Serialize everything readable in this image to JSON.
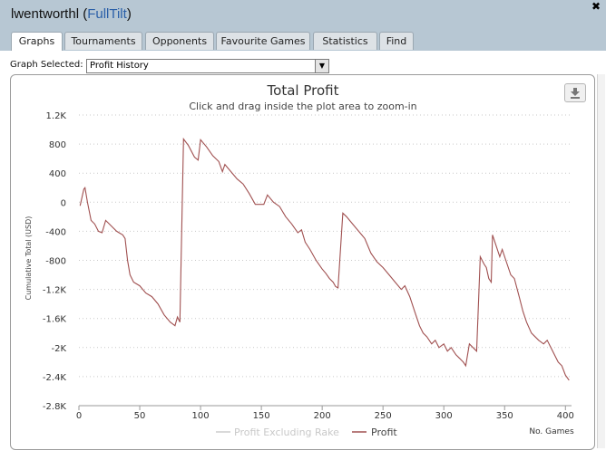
{
  "window": {
    "user": "lwentworthl",
    "site": "FullTilt"
  },
  "tabs": [
    {
      "label": "Graphs",
      "active": true
    },
    {
      "label": "Tournaments",
      "active": false
    },
    {
      "label": "Opponents",
      "active": false
    },
    {
      "label": "Favourite Games",
      "active": false
    },
    {
      "label": "Statistics",
      "active": false
    },
    {
      "label": "Find",
      "active": false
    }
  ],
  "graph_select": {
    "label": "Graph Selected:",
    "value": "Profit History"
  },
  "colors": {
    "header_bg": "#b7c7d3",
    "profit_line": "#a05050",
    "profit_excluding_rake_line": "#cccccc"
  },
  "chart_data": {
    "type": "line",
    "title": "Total Profit",
    "subtitle": "Click and drag inside the plot area to zoom-in",
    "xlabel": "No. Games",
    "ylabel": "Cumulative Total (USD)",
    "xlim": [
      0,
      405
    ],
    "ylim": [
      -2800,
      1200
    ],
    "xticks": [
      0,
      50,
      100,
      150,
      200,
      250,
      300,
      350,
      400
    ],
    "yticks": [
      -2800,
      -2400,
      -2000,
      -1600,
      -1200,
      -800,
      -400,
      0,
      400,
      800,
      1200
    ],
    "ytick_labels": [
      "-2.8K",
      "-2.4K",
      "-2K",
      "-1.6K",
      "-1.2K",
      "-800",
      "-400",
      "0",
      "400",
      "800",
      "1.2K"
    ],
    "grid": "horizontal dotted",
    "legend_position": "bottom-center",
    "series": [
      {
        "name": "Profit Excluding Rake",
        "values": []
      },
      {
        "name": "Profit",
        "values": [
          [
            1,
            -50
          ],
          [
            4,
            180
          ],
          [
            5,
            200
          ],
          [
            7,
            0
          ],
          [
            10,
            -250
          ],
          [
            13,
            -300
          ],
          [
            16,
            -400
          ],
          [
            19,
            -420
          ],
          [
            22,
            -250
          ],
          [
            25,
            -300
          ],
          [
            28,
            -350
          ],
          [
            31,
            -400
          ],
          [
            33,
            -420
          ],
          [
            36,
            -450
          ],
          [
            38,
            -500
          ],
          [
            40,
            -800
          ],
          [
            42,
            -1000
          ],
          [
            45,
            -1100
          ],
          [
            50,
            -1150
          ],
          [
            55,
            -1250
          ],
          [
            60,
            -1300
          ],
          [
            65,
            -1400
          ],
          [
            70,
            -1550
          ],
          [
            75,
            -1650
          ],
          [
            79,
            -1700
          ],
          [
            81,
            -1580
          ],
          [
            83,
            -1650
          ],
          [
            86,
            870
          ],
          [
            90,
            780
          ],
          [
            95,
            620
          ],
          [
            98,
            580
          ],
          [
            100,
            860
          ],
          [
            105,
            760
          ],
          [
            110,
            640
          ],
          [
            115,
            560
          ],
          [
            118,
            420
          ],
          [
            120,
            520
          ],
          [
            125,
            420
          ],
          [
            130,
            320
          ],
          [
            135,
            250
          ],
          [
            140,
            120
          ],
          [
            145,
            -30
          ],
          [
            152,
            -30
          ],
          [
            155,
            100
          ],
          [
            160,
            0
          ],
          [
            165,
            -60
          ],
          [
            170,
            -200
          ],
          [
            175,
            -300
          ],
          [
            180,
            -420
          ],
          [
            183,
            -380
          ],
          [
            186,
            -550
          ],
          [
            190,
            -650
          ],
          [
            195,
            -800
          ],
          [
            200,
            -920
          ],
          [
            203,
            -980
          ],
          [
            206,
            -1050
          ],
          [
            209,
            -1100
          ],
          [
            211,
            -1160
          ],
          [
            213,
            -1180
          ],
          [
            217,
            -150
          ],
          [
            220,
            -200
          ],
          [
            225,
            -300
          ],
          [
            230,
            -400
          ],
          [
            235,
            -500
          ],
          [
            240,
            -700
          ],
          [
            245,
            -820
          ],
          [
            250,
            -900
          ],
          [
            255,
            -1000
          ],
          [
            260,
            -1100
          ],
          [
            265,
            -1200
          ],
          [
            268,
            -1150
          ],
          [
            272,
            -1300
          ],
          [
            276,
            -1500
          ],
          [
            280,
            -1700
          ],
          [
            283,
            -1800
          ],
          [
            286,
            -1850
          ],
          [
            290,
            -1950
          ],
          [
            293,
            -1900
          ],
          [
            296,
            -2000
          ],
          [
            300,
            -1950
          ],
          [
            303,
            -2050
          ],
          [
            306,
            -2000
          ],
          [
            310,
            -2100
          ],
          [
            313,
            -2150
          ],
          [
            316,
            -2200
          ],
          [
            318,
            -2250
          ],
          [
            321,
            -1950
          ],
          [
            324,
            -2000
          ],
          [
            327,
            -2050
          ],
          [
            330,
            -750
          ],
          [
            333,
            -850
          ],
          [
            335,
            -900
          ],
          [
            337,
            -1050
          ],
          [
            339,
            -1100
          ],
          [
            340,
            -450
          ],
          [
            343,
            -600
          ],
          [
            346,
            -750
          ],
          [
            348,
            -650
          ],
          [
            351,
            -800
          ],
          [
            355,
            -1000
          ],
          [
            358,
            -1050
          ],
          [
            362,
            -1300
          ],
          [
            365,
            -1500
          ],
          [
            368,
            -1650
          ],
          [
            372,
            -1800
          ],
          [
            375,
            -1850
          ],
          [
            378,
            -1900
          ],
          [
            382,
            -1950
          ],
          [
            385,
            -1900
          ],
          [
            388,
            -2000
          ],
          [
            391,
            -2100
          ],
          [
            394,
            -2200
          ],
          [
            397,
            -2250
          ],
          [
            400,
            -2380
          ],
          [
            403,
            -2450
          ]
        ]
      }
    ]
  }
}
